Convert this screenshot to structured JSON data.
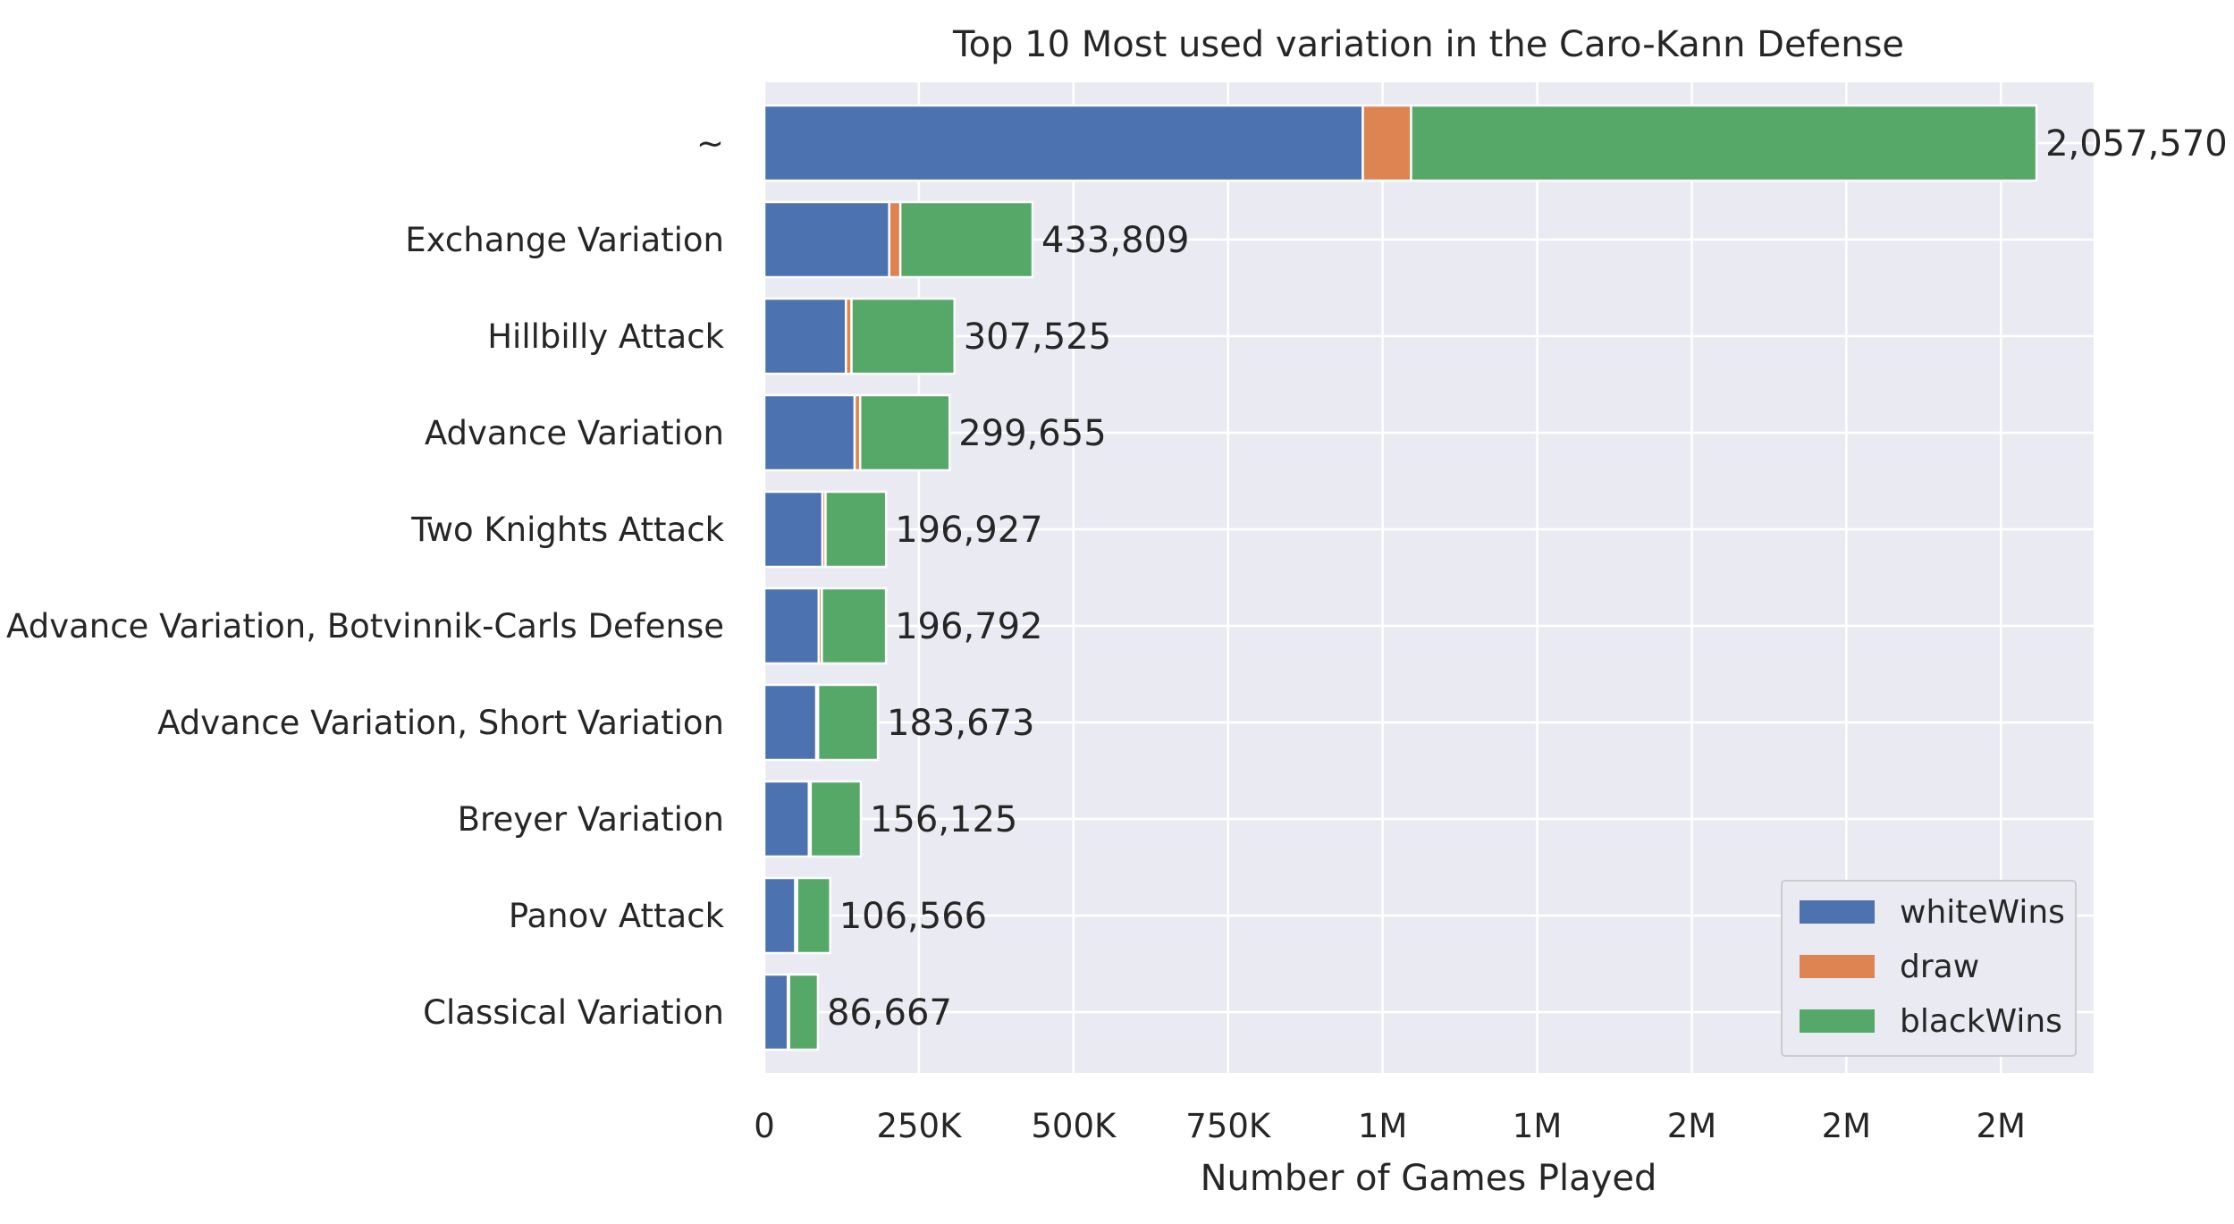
{
  "chart_data": {
    "type": "bar",
    "orientation": "horizontal",
    "stacked": true,
    "title": "Top 10 Most used variation in the Caro-Kann Defense",
    "xlabel": "Number of Games Played",
    "ylabel": "",
    "xlim": [
      0,
      2150000
    ],
    "x_ticks": [
      {
        "value": 0,
        "label": "0"
      },
      {
        "value": 250000,
        "label": "250K"
      },
      {
        "value": 500000,
        "label": "500K"
      },
      {
        "value": 750000,
        "label": "750K"
      },
      {
        "value": 1000000,
        "label": "1M"
      },
      {
        "value": 1250000,
        "label": "1M"
      },
      {
        "value": 1500000,
        "label": "2M"
      },
      {
        "value": 1750000,
        "label": "2M"
      },
      {
        "value": 2000000,
        "label": "2M"
      }
    ],
    "grid": true,
    "legend_position": "bottom-right",
    "categories": [
      "~",
      "Exchange Variation",
      "Hillbilly Attack",
      "Advance Variation",
      "Two Knights Attack",
      "Advance Variation, Botvinnik-Carls Defense",
      "Advance Variation, Short Variation",
      "Breyer Variation",
      "Panov Attack",
      "Classical Variation"
    ],
    "totals": [
      2057570,
      433809,
      307525,
      299655,
      196927,
      196792,
      183673,
      156125,
      106566,
      86667
    ],
    "total_labels": [
      "2,057,570",
      "433,809",
      "307,525",
      "299,655",
      "196,927",
      "196,792",
      "183,673",
      "156,125",
      "106,566",
      "86,667"
    ],
    "series": [
      {
        "name": "whiteWins",
        "color": "#4c72b0",
        "values": [
          968000,
          202000,
          132000,
          146000,
          94000,
          88000,
          84000,
          72000,
          50000,
          38000
        ]
      },
      {
        "name": "draw",
        "color": "#dd8452",
        "values": [
          78000,
          18000,
          9000,
          9000,
          5000,
          5000,
          3000,
          3000,
          3000,
          2000
        ]
      },
      {
        "name": "blackWins",
        "color": "#55a868",
        "values": [
          1011570,
          213809,
          166525,
          144655,
          97927,
          103792,
          96673,
          81125,
          53566,
          46667
        ]
      }
    ]
  }
}
